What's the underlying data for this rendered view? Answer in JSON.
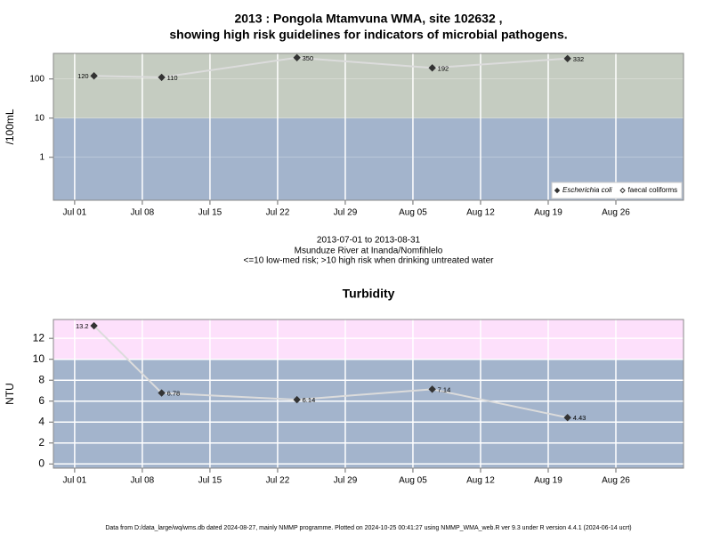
{
  "chart_data": [
    {
      "type": "line",
      "title": "2013 : Pongola Mtamvuna WMA, site 102632 ,",
      "subtitle": "showing high risk guidelines for indicators of microbial pathogens.",
      "y_label": "/100mL",
      "log_y": true,
      "x": [
        184,
        191,
        205,
        219,
        233
      ],
      "series": [
        {
          "name": "Escherichia coli",
          "color": "#333333",
          "marker": "filled",
          "values": [
            120,
            110,
            350,
            192,
            332
          ]
        },
        {
          "name": "faecal coliforms",
          "color": "#333333",
          "marker": "hollow",
          "values": [
            null,
            null,
            null,
            null,
            null
          ]
        }
      ],
      "line_color": "#dcdcdc",
      "xlim": [
        179.8,
        245
      ],
      "xticks": [
        {
          "value": 182,
          "label": "Jul 01"
        },
        {
          "value": 189,
          "label": "Jul 08"
        },
        {
          "value": 196,
          "label": "Jul 15"
        },
        {
          "value": 203,
          "label": "Jul 22"
        },
        {
          "value": 210,
          "label": "Jul 29"
        },
        {
          "value": 217,
          "label": "Aug 05"
        },
        {
          "value": 224,
          "label": "Aug 12"
        },
        {
          "value": 231,
          "label": "Aug 19"
        },
        {
          "value": 238,
          "label": "Aug 26"
        }
      ],
      "ylim": [
        0.08,
        450
      ],
      "yticks": [
        1,
        10,
        100
      ],
      "threshold": 10,
      "below_color": "#a3b4cc",
      "above_color": "#c5ccc1",
      "grid": true,
      "legend": "bottom-right",
      "annotations": [
        "2013-07-01 to 2013-08-31",
        "Msunduze River at Inanda/Nomfihlelo",
        "<=10 low-med risk; >10 high risk when drinking untreated water"
      ]
    },
    {
      "type": "line",
      "title": "Turbidity",
      "y_label": "NTU",
      "log_y": false,
      "x": [
        184,
        191,
        205,
        219,
        233
      ],
      "series": [
        {
          "name": "Turbidity",
          "color": "#333333",
          "marker": "filled",
          "values": [
            13.2,
            6.78,
            6.14,
            7.14,
            4.43
          ]
        }
      ],
      "line_color": "#dcdcdc",
      "xlim": [
        179.8,
        245
      ],
      "xticks": [
        {
          "value": 182,
          "label": "Jul 01"
        },
        {
          "value": 189,
          "label": "Jul 08"
        },
        {
          "value": 196,
          "label": "Jul 15"
        },
        {
          "value": 203,
          "label": "Jul 22"
        },
        {
          "value": 210,
          "label": "Jul 29"
        },
        {
          "value": 217,
          "label": "Aug 05"
        },
        {
          "value": 224,
          "label": "Aug 12"
        },
        {
          "value": 231,
          "label": "Aug 19"
        },
        {
          "value": 238,
          "label": "Aug 26"
        }
      ],
      "ylim": [
        -0.4,
        13.8
      ],
      "yticks": [
        0,
        2,
        4,
        6,
        8,
        10,
        12
      ],
      "threshold": 10,
      "below_color": "#a3b4cc",
      "above_color": "#fde0fb",
      "grid": true
    }
  ],
  "footer": "Data from D:/data_large/wq/wms.db dated 2024-08-27, mainly NMMP programme. Plotted on 2024-10-25 00:41:27 using NMMP_WMA_web.R ver 9.3 under R version 4.4.1 (2024-06-14 ucrt)"
}
